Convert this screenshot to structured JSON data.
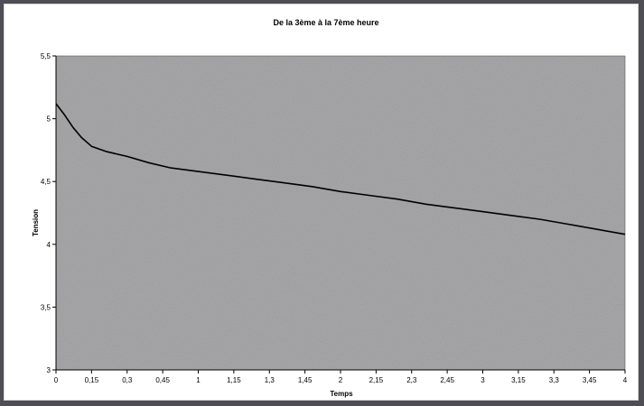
{
  "chart_data": {
    "type": "line",
    "title": "De la 3ème à la 7ème heure",
    "xlabel": "Temps",
    "ylabel": "Tension",
    "x_ticks": [
      "0",
      "0,15",
      "0,3",
      "0,45",
      "1",
      "1,15",
      "1,3",
      "1,45",
      "2",
      "2,15",
      "2,3",
      "2,45",
      "3",
      "3,15",
      "3,3",
      "3,45",
      "4"
    ],
    "y_ticks": [
      "3",
      "3,5",
      "4",
      "4,5",
      "5",
      "5,5"
    ],
    "ylim": [
      3,
      5.5
    ],
    "grid": false,
    "legend": "none",
    "colors": {
      "plot_area": "#a9a9ab",
      "line": "#000000",
      "frame": "#ffffff"
    },
    "series": [
      {
        "x": [
          0,
          0.06,
          0.12,
          0.18,
          0.25,
          0.35,
          0.5,
          0.65,
          0.8,
          1.0,
          1.2,
          1.4,
          1.6,
          1.8,
          2.0,
          2.2,
          2.4,
          2.6,
          2.8,
          3.0,
          3.2,
          3.4,
          3.6,
          3.8,
          4.0
        ],
        "values": [
          5.12,
          5.03,
          4.93,
          4.85,
          4.78,
          4.74,
          4.7,
          4.65,
          4.61,
          4.58,
          4.55,
          4.52,
          4.49,
          4.46,
          4.42,
          4.39,
          4.36,
          4.32,
          4.29,
          4.26,
          4.23,
          4.2,
          4.16,
          4.12,
          4.08
        ]
      }
    ]
  }
}
